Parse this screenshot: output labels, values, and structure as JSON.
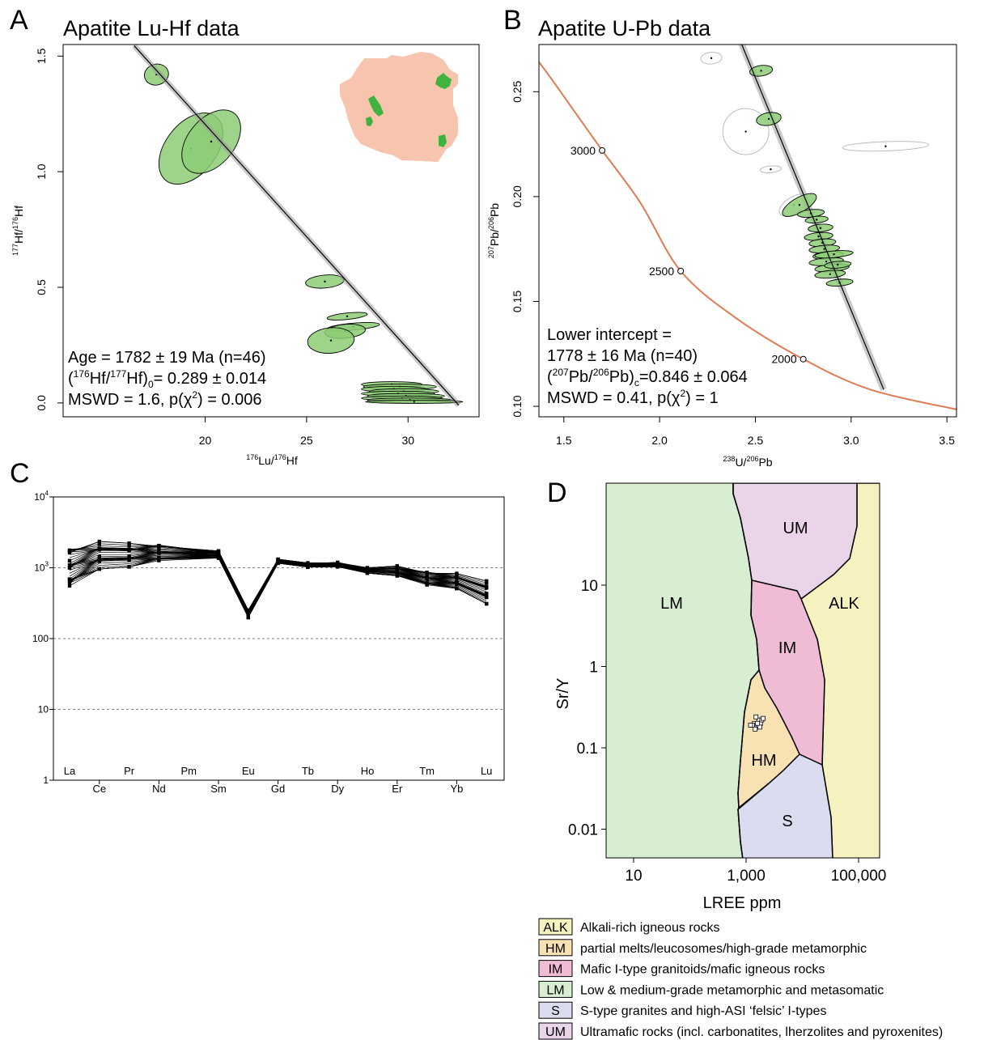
{
  "panels": {
    "A": {
      "letter": "A",
      "title": "Apatite Lu-Hf data"
    },
    "B": {
      "letter": "B",
      "title": "Apatite U-Pb data"
    },
    "C": {
      "letter": "C"
    },
    "D": {
      "letter": "D"
    }
  },
  "chart_data": [
    {
      "id": "A",
      "type": "scatter",
      "title": "Apatite Lu-Hf data",
      "xlabel_main": "Lu/",
      "xlabel_sup1": "176",
      "xlabel_sup2": "176",
      "xlabel_end": "Hf",
      "ylabel_main": "Hf/",
      "ylabel_sup1": "177",
      "ylabel_sup2": "176",
      "ylabel_end": "Hf",
      "xlim": [
        13,
        33.5
      ],
      "ylim": [
        -0.06,
        1.55
      ],
      "xticks": [
        20,
        25,
        30
      ],
      "yticks": [
        0.0,
        0.5,
        1.0,
        1.5
      ],
      "xtick_labels": [
        "20",
        "25",
        "30"
      ],
      "ytick_labels": [
        "0.0",
        "0.5",
        "1.0",
        "1.5"
      ],
      "isochron": {
        "x": [
          16.5,
          32.5
        ],
        "y": [
          1.545,
          -0.01
        ]
      },
      "ellipse_color": "#8ccc75",
      "ellipses": [
        {
          "x": 17.6,
          "y": 1.42,
          "rx": 0.6,
          "ry": 0.045,
          "angle": -15
        },
        {
          "x": 19.3,
          "y": 1.1,
          "rx": 2.0,
          "ry": 0.11,
          "angle": -52
        },
        {
          "x": 20.3,
          "y": 1.13,
          "rx": 1.8,
          "ry": 0.1,
          "angle": -50
        },
        {
          "x": 25.9,
          "y": 0.525,
          "rx": 0.95,
          "ry": 0.028,
          "angle": -5
        },
        {
          "x": 27.0,
          "y": 0.375,
          "rx": 1.0,
          "ry": 0.014,
          "angle": -6
        },
        {
          "x": 27.3,
          "y": 0.33,
          "rx": 1.3,
          "ry": 0.015,
          "angle": -5
        },
        {
          "x": 26.9,
          "y": 0.31,
          "rx": 1.0,
          "ry": 0.03,
          "angle": -5
        },
        {
          "x": 26.2,
          "y": 0.27,
          "rx": 1.15,
          "ry": 0.055,
          "angle": -5
        },
        {
          "x": 29.2,
          "y": 0.08,
          "rx": 1.5,
          "ry": 0.012,
          "angle": 0
        },
        {
          "x": 29.6,
          "y": 0.07,
          "rx": 1.8,
          "ry": 0.012,
          "angle": 0
        },
        {
          "x": 29.3,
          "y": 0.06,
          "rx": 1.6,
          "ry": 0.012,
          "angle": 0
        },
        {
          "x": 29.8,
          "y": 0.05,
          "rx": 1.7,
          "ry": 0.012,
          "angle": 0
        },
        {
          "x": 29.5,
          "y": 0.04,
          "rx": 1.8,
          "ry": 0.011,
          "angle": 0
        },
        {
          "x": 29.9,
          "y": 0.03,
          "rx": 1.9,
          "ry": 0.011,
          "angle": 0
        },
        {
          "x": 29.7,
          "y": 0.02,
          "rx": 2.0,
          "ry": 0.01,
          "angle": 0
        },
        {
          "x": 30.1,
          "y": 0.012,
          "rx": 2.1,
          "ry": 0.009,
          "angle": 0
        },
        {
          "x": 30.3,
          "y": 0.005,
          "rx": 2.4,
          "ry": 0.007,
          "angle": 0
        }
      ],
      "annotation": {
        "line1": "Age = 1782 ± 19 Ma (n=46)",
        "line2_open": "(",
        "line2_sup1": "176",
        "line2_mid": "Hf/",
        "line2_sup2": "177",
        "line2_hf": "Hf)",
        "line2_sub": "0",
        "line2_end": "= 0.289 ± 0.014",
        "line3_a": "MSWD = 1.6, p(χ",
        "line3_sup": "2",
        "line3_b": ") = 0.006"
      },
      "inset_map": {
        "land_color": "#f7c5ad",
        "apatite_color": "#3fb23f"
      }
    },
    {
      "id": "B",
      "type": "scatter",
      "title": "Apatite U-Pb data",
      "xlabel_main": "U/",
      "xlabel_sup1": "238",
      "xlabel_sup2": "206",
      "xlabel_end": "Pb",
      "ylabel_main": "Pb/",
      "ylabel_sup1": "207",
      "ylabel_sup2": "206",
      "ylabel_end": "Pb",
      "xlim": [
        1.37,
        3.55
      ],
      "ylim": [
        0.095,
        0.2725
      ],
      "xticks": [
        1.5,
        2.0,
        2.5,
        3.0,
        3.5
      ],
      "yticks": [
        0.1,
        0.15,
        0.2,
        0.25
      ],
      "xtick_labels": [
        "1.5",
        "2.0",
        "2.5",
        "3.0",
        "3.5"
      ],
      "ytick_labels": [
        "0.10",
        "0.15",
        "0.20",
        "0.25"
      ],
      "concordia_color": "#e07b54",
      "concordia_points": [
        {
          "x": 1.28,
          "y": 0.275
        },
        {
          "x": 1.42,
          "y": 0.258
        },
        {
          "x": 1.56,
          "y": 0.24
        },
        {
          "x": 1.7,
          "y": 0.222
        },
        {
          "x": 1.9,
          "y": 0.197
        },
        {
          "x": 2.11,
          "y": 0.1645
        },
        {
          "x": 2.4,
          "y": 0.142
        },
        {
          "x": 2.75,
          "y": 0.1225
        },
        {
          "x": 3.1,
          "y": 0.108
        },
        {
          "x": 3.55,
          "y": 0.0985
        }
      ],
      "concordia_marks": [
        {
          "label": "3000",
          "x": 1.7,
          "y": 0.222
        },
        {
          "label": "2500",
          "x": 2.11,
          "y": 0.1645
        },
        {
          "label": "2000",
          "x": 2.75,
          "y": 0.1225
        }
      ],
      "discordia": {
        "x": [
          2.42,
          3.17
        ],
        "y": [
          0.2745,
          0.108
        ]
      },
      "included_color": "#8ccc75",
      "included": [
        {
          "x": 2.53,
          "y": 0.26,
          "rx": 0.06,
          "ry": 0.0025,
          "angle": -8
        },
        {
          "x": 2.57,
          "y": 0.237,
          "rx": 0.065,
          "ry": 0.003,
          "angle": -10
        },
        {
          "x": 2.73,
          "y": 0.196,
          "rx": 0.1,
          "ry": 0.0035,
          "angle": -30
        },
        {
          "x": 2.79,
          "y": 0.192,
          "rx": 0.07,
          "ry": 0.0018,
          "angle": -6
        },
        {
          "x": 2.82,
          "y": 0.189,
          "rx": 0.06,
          "ry": 0.0016,
          "angle": -5
        },
        {
          "x": 2.84,
          "y": 0.185,
          "rx": 0.065,
          "ry": 0.0018,
          "angle": -5
        },
        {
          "x": 2.83,
          "y": 0.181,
          "rx": 0.075,
          "ry": 0.0018,
          "angle": -5
        },
        {
          "x": 2.85,
          "y": 0.178,
          "rx": 0.07,
          "ry": 0.0018,
          "angle": -5
        },
        {
          "x": 2.86,
          "y": 0.175,
          "rx": 0.08,
          "ry": 0.0018,
          "angle": -5
        },
        {
          "x": 2.88,
          "y": 0.172,
          "rx": 0.08,
          "ry": 0.0018,
          "angle": -5
        },
        {
          "x": 2.87,
          "y": 0.169,
          "rx": 0.09,
          "ry": 0.0018,
          "angle": -5
        },
        {
          "x": 2.9,
          "y": 0.166,
          "rx": 0.09,
          "ry": 0.0018,
          "angle": -5
        },
        {
          "x": 2.89,
          "y": 0.163,
          "rx": 0.08,
          "ry": 0.0018,
          "angle": -5
        },
        {
          "x": 2.94,
          "y": 0.159,
          "rx": 0.07,
          "ry": 0.0016,
          "angle": -5
        },
        {
          "x": 2.91,
          "y": 0.1725,
          "rx": 0.1,
          "ry": 0.0016,
          "angle": -5
        },
        {
          "x": 2.93,
          "y": 0.1675,
          "rx": 0.07,
          "ry": 0.0016,
          "angle": -5
        }
      ],
      "excluded": [
        {
          "x": 2.27,
          "y": 0.266,
          "rx": 0.055,
          "ry": 0.0028,
          "angle": -5
        },
        {
          "x": 2.45,
          "y": 0.231,
          "rx": 0.12,
          "ry": 0.011,
          "angle": -38
        },
        {
          "x": 2.58,
          "y": 0.213,
          "rx": 0.055,
          "ry": 0.0016,
          "angle": -5
        },
        {
          "x": 3.18,
          "y": 0.224,
          "rx": 0.225,
          "ry": 0.0022,
          "angle": -2
        },
        {
          "x": 2.7,
          "y": 0.196,
          "rx": 0.085,
          "ry": 0.0038,
          "angle": -32
        }
      ],
      "annotation": {
        "line1": "Lower intercept =",
        "line2": "1778 ± 16 Ma (n=40)",
        "line3_open": "(",
        "line3_sup1": "207",
        "line3_mid": "Pb/",
        "line3_sup2": "206",
        "line3_pb": "Pb)",
        "line3_sub": "c",
        "line3_end": "=0.846 ± 0.064",
        "line4_a": "MSWD = 0.41, p(χ",
        "line4_sup": "2",
        "line4_b": ") = 1"
      }
    },
    {
      "id": "C",
      "type": "line",
      "categories": [
        "La",
        "Ce",
        "Pr",
        "Nd",
        "Pm",
        "Sm",
        "Eu",
        "Gd",
        "Tb",
        "Dy",
        "Ho",
        "Er",
        "Tm",
        "Yb",
        "Lu"
      ],
      "ylim": [
        1,
        10000
      ],
      "y_log": true,
      "gridlines": [
        10,
        100,
        1000
      ],
      "ytick_labels": [
        "1",
        "10",
        "100",
        "10",
        "10"
      ],
      "ytick_sup": [
        "",
        "",
        "",
        "3",
        "4"
      ],
      "series_min": [
        520,
        960,
        1030,
        1230,
        null,
        1370,
        195,
        1160,
        1020,
        1020,
        840,
        770,
        560,
        510,
        310
      ],
      "series_max": [
        1900,
        2350,
        2220,
        2120,
        null,
        1730,
        255,
        1320,
        1170,
        1200,
        1000,
        1060,
        880,
        830,
        650
      ],
      "series_count": 40
    },
    {
      "id": "D",
      "type": "scatter",
      "xlabel": "LREE ppm",
      "ylabel": "Sr/Y",
      "x_log": true,
      "y_log": true,
      "xlim": [
        3,
        300000
      ],
      "ylim": [
        0.0045,
        85
      ],
      "xtick_labels": [
        "10",
        "1,000",
        "100,000"
      ],
      "ytick_labels": [
        "0.01",
        "0.1",
        "1",
        "10"
      ],
      "fields": [
        {
          "code": "LM",
          "label": "LM",
          "color": "#d8eed3"
        },
        {
          "code": "UM",
          "label": "UM",
          "color": "#e9d4ea"
        },
        {
          "code": "ALK",
          "label": "ALK",
          "color": "#f5f2c0"
        },
        {
          "code": "IM",
          "label": "IM",
          "color": "#f0bcd5"
        },
        {
          "code": "HM",
          "label": "HM",
          "color": "#f8e2b4"
        },
        {
          "code": "S",
          "label": "S",
          "color": "#dcdcf0"
        }
      ],
      "points": [
        {
          "x": 1400,
          "y": 0.2
        },
        {
          "x": 1550,
          "y": 0.18
        },
        {
          "x": 1700,
          "y": 0.22
        },
        {
          "x": 1500,
          "y": 0.24
        },
        {
          "x": 1650,
          "y": 0.19
        },
        {
          "x": 1800,
          "y": 0.2
        },
        {
          "x": 1900,
          "y": 0.22
        },
        {
          "x": 2000,
          "y": 0.23
        },
        {
          "x": 1300,
          "y": 0.19
        },
        {
          "x": 1200,
          "y": 0.19
        },
        {
          "x": 1450,
          "y": 0.17
        },
        {
          "x": 1750,
          "y": 0.18
        },
        {
          "x": 1600,
          "y": 0.2
        }
      ]
    }
  ],
  "legend": [
    {
      "code": "ALK",
      "text": "Alkali-rich igneous rocks",
      "color": "#f5f2c0"
    },
    {
      "code": "HM",
      "text": "partial melts/leucosomes/high-grade metamorphic",
      "color": "#f8e2b4"
    },
    {
      "code": "IM",
      "text": "Mafic I-type granitoids/mafic igneous rocks",
      "color": "#f0bcd5"
    },
    {
      "code": "LM",
      "text": "Low & medium-grade metamorphic and metasomatic",
      "color": "#d8eed3"
    },
    {
      "code": "S",
      "text": "S-type granites and high-ASI ‘felsic’ I-types",
      "color": "#dcdcf0"
    },
    {
      "code": "UM",
      "text": "Ultramafic rocks (incl. carbonatites, lherzolites and pyroxenites)",
      "color": "#e9d4ea"
    }
  ]
}
